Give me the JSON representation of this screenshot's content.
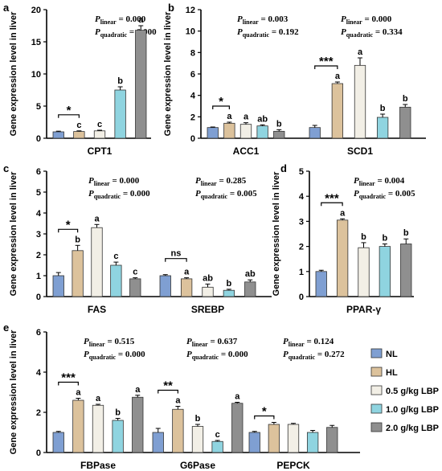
{
  "colors": {
    "NL": "#7f9fd2",
    "HL": "#dcc29c",
    "LBP05": "#f2efe6",
    "LBP10": "#8fd4e0",
    "LBP20": "#8f8f8f"
  },
  "legend": {
    "items": [
      {
        "label": "NL",
        "color_key": "NL"
      },
      {
        "label": "HL",
        "color_key": "HL"
      },
      {
        "label": "0.5 g/kg LBP",
        "color_key": "LBP05"
      },
      {
        "label": "1.0 g/kg LBP",
        "color_key": "LBP10"
      },
      {
        "label": "2.0 g/kg LBP",
        "color_key": "LBP20"
      }
    ]
  },
  "chart_data": [
    {
      "type": "bar",
      "panel_label": "a",
      "ylabel": "Gene expression level in liver",
      "ylim": [
        0,
        20
      ],
      "yticks": [
        "0",
        "5",
        "10",
        "15",
        "20"
      ],
      "stats": [
        {
          "linear": "0.000",
          "quadratic": "0.000"
        }
      ],
      "groups": [
        {
          "name": "CPT1",
          "values": [
            1.0,
            1.05,
            1.15,
            7.5,
            16.8
          ],
          "errors": [
            0.1,
            0.1,
            0.1,
            0.5,
            0.7
          ],
          "letters": [
            "",
            "c",
            "c",
            "b",
            "a"
          ],
          "sig": "*"
        }
      ]
    },
    {
      "type": "bar",
      "panel_label": "b",
      "ylabel": "Gene expression level in liver",
      "ylim": [
        0,
        12
      ],
      "yticks": [
        "0",
        "2",
        "4",
        "6",
        "8",
        "10",
        "12"
      ],
      "stats": [
        {
          "linear": "0.003",
          "quadratic": "0.192"
        },
        {
          "linear": "0.000",
          "quadratic": "0.334"
        }
      ],
      "groups": [
        {
          "name": "ACC1",
          "values": [
            1.0,
            1.4,
            1.3,
            1.15,
            0.65
          ],
          "errors": [
            0.05,
            0.1,
            0.15,
            0.1,
            0.15
          ],
          "letters": [
            "",
            "a",
            "a",
            "ab",
            "b"
          ],
          "sig": "*"
        },
        {
          "name": "SCD1",
          "values": [
            1.0,
            5.1,
            6.8,
            1.95,
            2.9
          ],
          "errors": [
            0.2,
            0.15,
            0.7,
            0.3,
            0.25
          ],
          "letters": [
            "",
            "a",
            "a",
            "b",
            "b"
          ],
          "sig": "***"
        }
      ]
    },
    {
      "type": "bar",
      "panel_label": "c",
      "ylabel": "Gene expression level in liver",
      "ylim": [
        0,
        6
      ],
      "yticks": [
        "0",
        "1",
        "2",
        "3",
        "4",
        "5",
        "6"
      ],
      "stats": [
        {
          "linear": "0.000",
          "quadratic": "0.000"
        },
        {
          "linear": "0.285",
          "quadratic": "0.005"
        }
      ],
      "groups": [
        {
          "name": "FAS",
          "values": [
            1.0,
            2.2,
            3.3,
            1.5,
            0.85
          ],
          "errors": [
            0.15,
            0.25,
            0.15,
            0.15,
            0.05
          ],
          "letters": [
            "",
            "b",
            "a",
            "c",
            "c"
          ],
          "sig": "*"
        },
        {
          "name": "SREBP",
          "values": [
            1.0,
            0.85,
            0.45,
            0.3,
            0.7
          ],
          "errors": [
            0.05,
            0.05,
            0.15,
            0.05,
            0.1
          ],
          "letters": [
            "",
            "a",
            "ab",
            "b",
            "ab"
          ],
          "sig": "ns"
        }
      ]
    },
    {
      "type": "bar",
      "panel_label": "d",
      "ylabel": "Gene expression level in liver",
      "ylim": [
        0,
        5
      ],
      "yticks": [
        "0",
        "1",
        "2",
        "3",
        "4",
        "5"
      ],
      "stats": [
        {
          "linear": "0.004",
          "quadratic": "0.005"
        }
      ],
      "groups": [
        {
          "name": "PPAR-γ",
          "values": [
            1.0,
            3.05,
            1.95,
            2.0,
            2.1
          ],
          "errors": [
            0.05,
            0.05,
            0.2,
            0.1,
            0.2
          ],
          "letters": [
            "",
            "a",
            "b",
            "b",
            "b"
          ],
          "sig": "***"
        }
      ]
    },
    {
      "type": "bar",
      "panel_label": "e",
      "ylabel": "Gene expression level in liver",
      "ylim": [
        0,
        6
      ],
      "yticks": [
        "0",
        "2",
        "4",
        "6"
      ],
      "stats": [
        {
          "linear": "0.515",
          "quadratic": "0.000"
        },
        {
          "linear": "0.637",
          "quadratic": "0.000"
        },
        {
          "linear": "0.124",
          "quadratic": "0.272"
        }
      ],
      "groups": [
        {
          "name": "FBPase",
          "values": [
            1.0,
            2.6,
            2.35,
            1.6,
            2.75
          ],
          "errors": [
            0.05,
            0.1,
            0.05,
            0.1,
            0.1
          ],
          "letters": [
            "",
            "a",
            "a",
            "b",
            "a"
          ],
          "sig": "***"
        },
        {
          "name": "G6Pase",
          "values": [
            1.0,
            2.15,
            1.3,
            0.55,
            2.45
          ],
          "errors": [
            0.2,
            0.15,
            0.1,
            0.05,
            0.05
          ],
          "letters": [
            "",
            "a",
            "b",
            "c",
            "a"
          ],
          "sig": "**"
        },
        {
          "name": "PEPCK",
          "values": [
            1.0,
            1.4,
            1.4,
            1.0,
            1.25
          ],
          "errors": [
            0.05,
            0.1,
            0.05,
            0.1,
            0.1
          ],
          "letters": [
            "",
            "",
            "",
            "",
            ""
          ],
          "sig": "*"
        }
      ]
    }
  ]
}
